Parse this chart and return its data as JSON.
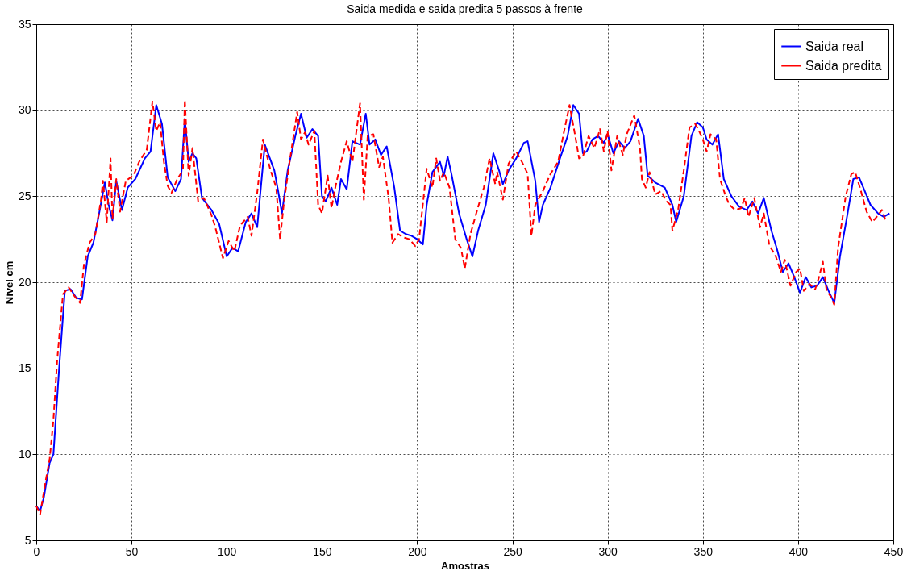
{
  "chart_data": {
    "type": "line",
    "title": "Saida medida e saida predita 5 passos à frente",
    "xlabel": "Amostras",
    "ylabel": "Nivel cm",
    "xlim": [
      0,
      450
    ],
    "xticks": [
      0,
      50,
      100,
      150,
      200,
      250,
      300,
      350,
      400,
      450
    ],
    "ylim": [
      5,
      35
    ],
    "yticks": [
      5,
      10,
      15,
      20,
      25,
      30,
      35
    ],
    "grid": true,
    "legend": "top right",
    "series": [
      {
        "name": "Saida real",
        "color": "#0000ff",
        "line_style": "solid",
        "x": [
          0,
          2,
          4,
          7,
          9,
          12,
          15,
          18,
          21,
          24,
          27,
          30,
          33,
          36,
          38,
          40,
          42,
          45,
          48,
          52,
          57,
          60,
          63,
          66,
          69,
          73,
          76,
          78,
          80,
          82,
          84,
          87,
          92,
          96,
          100,
          103,
          106,
          110,
          113,
          116,
          120,
          125,
          127,
          129,
          132,
          136,
          139,
          142,
          145,
          148,
          150,
          152,
          155,
          158,
          160,
          163,
          166,
          170,
          173,
          175,
          178,
          181,
          184,
          188,
          191,
          194,
          197,
          200,
          203,
          205,
          208,
          212,
          214,
          216,
          218,
          222,
          226,
          229,
          232,
          236,
          240,
          243,
          245,
          248,
          252,
          256,
          258,
          262,
          264,
          266,
          270,
          275,
          279,
          282,
          285,
          287,
          289,
          292,
          295,
          298,
          300,
          303,
          306,
          309,
          312,
          316,
          319,
          321,
          325,
          330,
          334,
          336,
          340,
          344,
          347,
          350,
          352,
          355,
          358,
          361,
          365,
          369,
          373,
          376,
          379,
          382,
          386,
          389,
          392,
          395,
          398,
          401,
          404,
          407,
          410,
          413,
          416,
          419,
          422,
          426,
          429,
          432,
          435,
          438,
          442,
          445,
          448
        ],
        "values": [
          7,
          6.7,
          7.5,
          9.5,
          10,
          15,
          19.5,
          19.6,
          19.1,
          19,
          21.5,
          22.3,
          24,
          25.8,
          24.5,
          23.6,
          25.9,
          24.2,
          25.5,
          26,
          27.2,
          27.6,
          30.3,
          29.2,
          26.1,
          25.3,
          26,
          29.5,
          27,
          27.5,
          27.2,
          24.9,
          24.2,
          23.4,
          21.5,
          22,
          21.8,
          23.5,
          24,
          23.2,
          28,
          26.5,
          25.3,
          24,
          26.5,
          28.5,
          29.8,
          28.4,
          28.9,
          28.5,
          25,
          24.7,
          25.5,
          24.5,
          26,
          25.4,
          28.2,
          28,
          29.8,
          28,
          28.3,
          27.4,
          27.9,
          25.5,
          23,
          22.8,
          22.7,
          22.5,
          22.2,
          24.5,
          26.4,
          27,
          26.2,
          27.3,
          26.3,
          24,
          22.5,
          21.5,
          23,
          24.5,
          27.5,
          26.5,
          25.7,
          26.5,
          27.2,
          28.1,
          28.2,
          25.9,
          23.5,
          24.5,
          25.5,
          27.2,
          28.5,
          30.3,
          29.8,
          27.5,
          27.6,
          28.3,
          28.5,
          28.1,
          28.6,
          27.5,
          28.2,
          27.8,
          28.2,
          29.5,
          28.5,
          26.2,
          25.8,
          25.5,
          24.5,
          23.5,
          25,
          28.5,
          29.3,
          29,
          28.3,
          28,
          28.6,
          26,
          25,
          24.4,
          24.2,
          24.7,
          24,
          24.9,
          23,
          21.9,
          20.6,
          21.1,
          20.3,
          19.4,
          20.3,
          19.7,
          19.8,
          20.3,
          19.5,
          18.8,
          21.5,
          24,
          26,
          26.1,
          25.3,
          24.5,
          24,
          23.8,
          24
        ]
      },
      {
        "name": "Saida predita",
        "color": "#ff0000",
        "line_style": "dashed",
        "x": [
          0,
          2,
          5,
          7,
          9,
          11,
          14,
          17,
          20,
          23,
          25,
          28,
          31,
          34,
          35,
          37,
          39,
          40,
          42,
          44,
          47,
          51,
          54,
          58,
          61,
          63,
          65,
          67,
          69,
          71,
          74,
          77,
          78,
          80,
          82,
          85,
          88,
          90,
          92,
          94,
          98,
          101,
          104,
          107,
          111,
          113,
          116,
          119,
          123,
          126,
          128,
          130,
          133,
          137,
          139,
          141,
          143,
          146,
          148,
          150,
          153,
          155,
          157,
          160,
          163,
          166,
          170,
          172,
          174,
          177,
          180,
          182,
          185,
          187,
          190,
          193,
          196,
          199,
          201,
          205,
          208,
          210,
          212,
          214,
          217,
          220,
          223,
          225,
          228,
          231,
          235,
          238,
          241,
          242,
          245,
          248,
          252,
          255,
          258,
          260,
          262,
          266,
          270,
          274,
          277,
          280,
          283,
          285,
          287,
          290,
          293,
          296,
          298,
          300,
          302,
          305,
          308,
          310,
          314,
          317,
          318,
          320,
          322,
          325,
          328,
          331,
          333,
          334,
          337,
          340,
          343,
          346,
          348,
          350,
          352,
          354,
          357,
          359,
          362,
          364,
          367,
          370,
          372,
          374,
          377,
          380,
          382,
          385,
          388,
          391,
          393,
          396,
          399,
          401,
          403,
          406,
          409,
          411,
          413,
          415,
          417,
          419,
          421,
          425,
          428,
          430,
          433,
          436,
          439,
          442,
          444,
          446
        ],
        "values": [
          7,
          6.5,
          8.5,
          9.7,
          12,
          15.5,
          19.3,
          19.7,
          19.2,
          18.8,
          21,
          22.3,
          22.8,
          24.8,
          25.9,
          23.5,
          27.2,
          23.7,
          26,
          24.1,
          25.9,
          26.2,
          27,
          27.7,
          30.5,
          28.8,
          29.3,
          27,
          25.6,
          25.2,
          26,
          26.5,
          30.6,
          26.2,
          27.8,
          24.7,
          24.9,
          24.4,
          23.9,
          23.2,
          21.4,
          22.4,
          21.8,
          23.3,
          23.8,
          22.7,
          25.2,
          28.3,
          26.5,
          25.5,
          22.5,
          24.6,
          27,
          29.9,
          28.3,
          28.7,
          28,
          28.8,
          24.5,
          24,
          26.2,
          24.3,
          25.5,
          27,
          28.2,
          27,
          30.4,
          24.8,
          28.5,
          28.6,
          26.7,
          27.3,
          24.9,
          22.3,
          22.8,
          22.6,
          22.5,
          22.1,
          22.5,
          26.6,
          25.5,
          27.2,
          25.9,
          26.4,
          25.5,
          22.5,
          22,
          20.8,
          22.8,
          24,
          25.5,
          27.2,
          25.7,
          26.4,
          24.8,
          26.9,
          27.6,
          27,
          26.3,
          22.7,
          24.5,
          25.3,
          26.3,
          27,
          28.7,
          30.3,
          28.5,
          27.2,
          27.3,
          28.5,
          27.8,
          28.9,
          27.6,
          28.8,
          26.5,
          28.5,
          27.4,
          28.6,
          29.7,
          27.8,
          26,
          25.5,
          26.4,
          25.1,
          25.3,
          24.7,
          24.5,
          23,
          24.2,
          26.5,
          29,
          29.2,
          28.8,
          28.3,
          27.6,
          28.6,
          28.3,
          26,
          25,
          24.5,
          24.2,
          24.3,
          24.9,
          23.8,
          24.9,
          23.2,
          24,
          22.1,
          21.6,
          20.6,
          21.3,
          19.8,
          20.6,
          20.8,
          19.5,
          19.9,
          19.6,
          20.3,
          21.2,
          19.5,
          19.2,
          18.7,
          22,
          25,
          26.3,
          26.4,
          25.3,
          24.1,
          23.5,
          23.9,
          24.2,
          23.6
        ]
      }
    ]
  }
}
